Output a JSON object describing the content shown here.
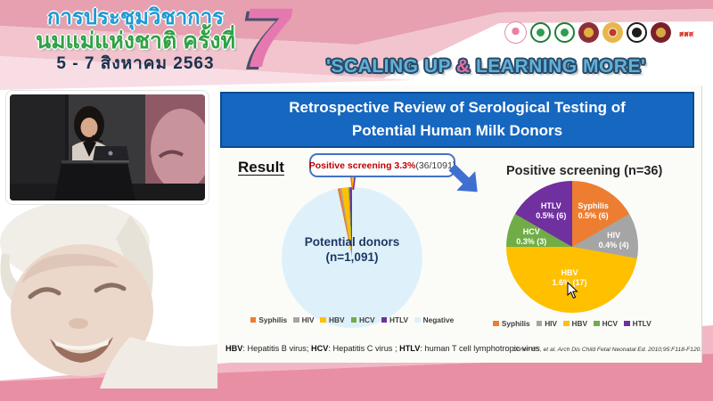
{
  "banner": {
    "line1": "การประชุมวิชาการ",
    "line2": "นมแม่แห่งชาติ ครั้งที่",
    "edition_number": "7",
    "dates": "5 - 7 สิงหาคม 2563",
    "tagline_pre": "'SCALING UP ",
    "tagline_amp": "&",
    "tagline_post": " LEARNING MORE'"
  },
  "logos": {
    "count": 8,
    "sss_text": "สสส"
  },
  "slide": {
    "title": "Retrospective Review of Serological Testing of Potential Human Milk Donors",
    "result_label": "Result",
    "callout_bold": "Positive screening 3.3%",
    "callout_rest": " (36/1091)",
    "left_pie_label_line1": "Potential donors",
    "left_pie_label_line2": "(n=1,091)",
    "footnote": {
      "abbr1": "HBV",
      "def1": ": Hepatitis B virus; ",
      "abbr2": "HCV",
      "def2": ": Hepatitis C virus ; ",
      "abbr3": "HTLV",
      "def3": ": human T cell lymphotropic virus"
    },
    "citation": "Cohen RS, et al. Arch Dis Child Fetal Neonatal Ed. 2010;95:F118-F120."
  },
  "chart_data": [
    {
      "id": "potential-donors-pie",
      "type": "pie",
      "title": "Potential donors (n=1,091)",
      "total": 1091,
      "annotation": "Positive screening 3.3% (36/1091)",
      "slices": [
        {
          "label": "Syphilis",
          "value": 6,
          "color": "#ED7D31"
        },
        {
          "label": "HIV",
          "value": 4,
          "color": "#A5A5A5"
        },
        {
          "label": "HBV",
          "value": 17,
          "color": "#FFC000"
        },
        {
          "label": "HCV",
          "value": 3,
          "color": "#70AD47"
        },
        {
          "label": "HTLV",
          "value": 6,
          "color": "#7030A0"
        },
        {
          "label": "Negative",
          "value": 1055,
          "color": "#DEF1FA"
        }
      ],
      "legend": [
        "Syphilis",
        "HIV",
        "HBV",
        "HCV",
        "HTLV",
        "Negative"
      ],
      "legend_position": "bottom",
      "data_labels": false
    },
    {
      "id": "positive-screening-pie",
      "type": "pie",
      "title": "Positive screening (n=36)",
      "total": 36,
      "start_angle_deg": 0,
      "direction": "clockwise",
      "slices": [
        {
          "label": "Syphilis",
          "value": 6,
          "pct": "0.5%",
          "color": "#ED7D31"
        },
        {
          "label": "HIV",
          "value": 4,
          "pct": "0.4%",
          "color": "#A5A5A5"
        },
        {
          "label": "HBV",
          "value": 17,
          "pct": "1.6%",
          "color": "#FFC000"
        },
        {
          "label": "HCV",
          "value": 3,
          "pct": "0.3%",
          "color": "#70AD47"
        },
        {
          "label": "HTLV",
          "value": 6,
          "pct": "0.5%",
          "color": "#7030A0"
        }
      ],
      "legend": [
        "Syphilis",
        "HIV",
        "HBV",
        "HCV",
        "HTLV"
      ],
      "legend_position": "bottom",
      "data_labels": true
    }
  ]
}
